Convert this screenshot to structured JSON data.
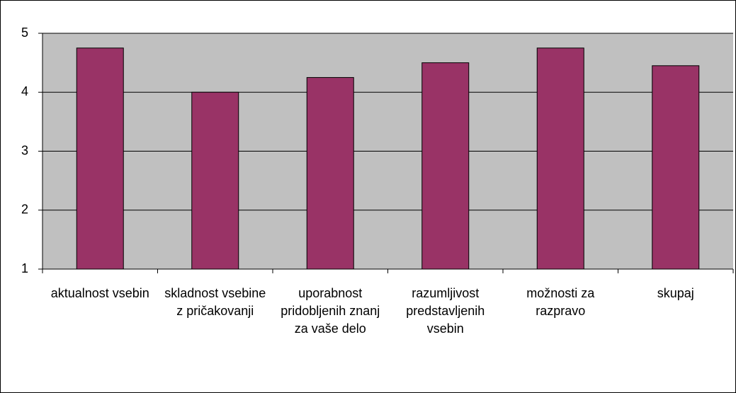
{
  "chart_data": {
    "type": "bar",
    "categories": [
      "aktualnost vsebin",
      "skladnost vsebine z pričakovanji",
      "uporabnost pridobljenih znanj za vaše delo",
      "razumljivost predstavljenih vsebin",
      "možnosti za razpravo",
      "skupaj"
    ],
    "values": [
      4.75,
      4.0,
      4.25,
      4.5,
      4.75,
      4.45
    ],
    "color": "#993366",
    "ylim": [
      1,
      5
    ],
    "yticks": [
      1,
      2,
      3,
      4,
      5
    ],
    "grid": true
  }
}
